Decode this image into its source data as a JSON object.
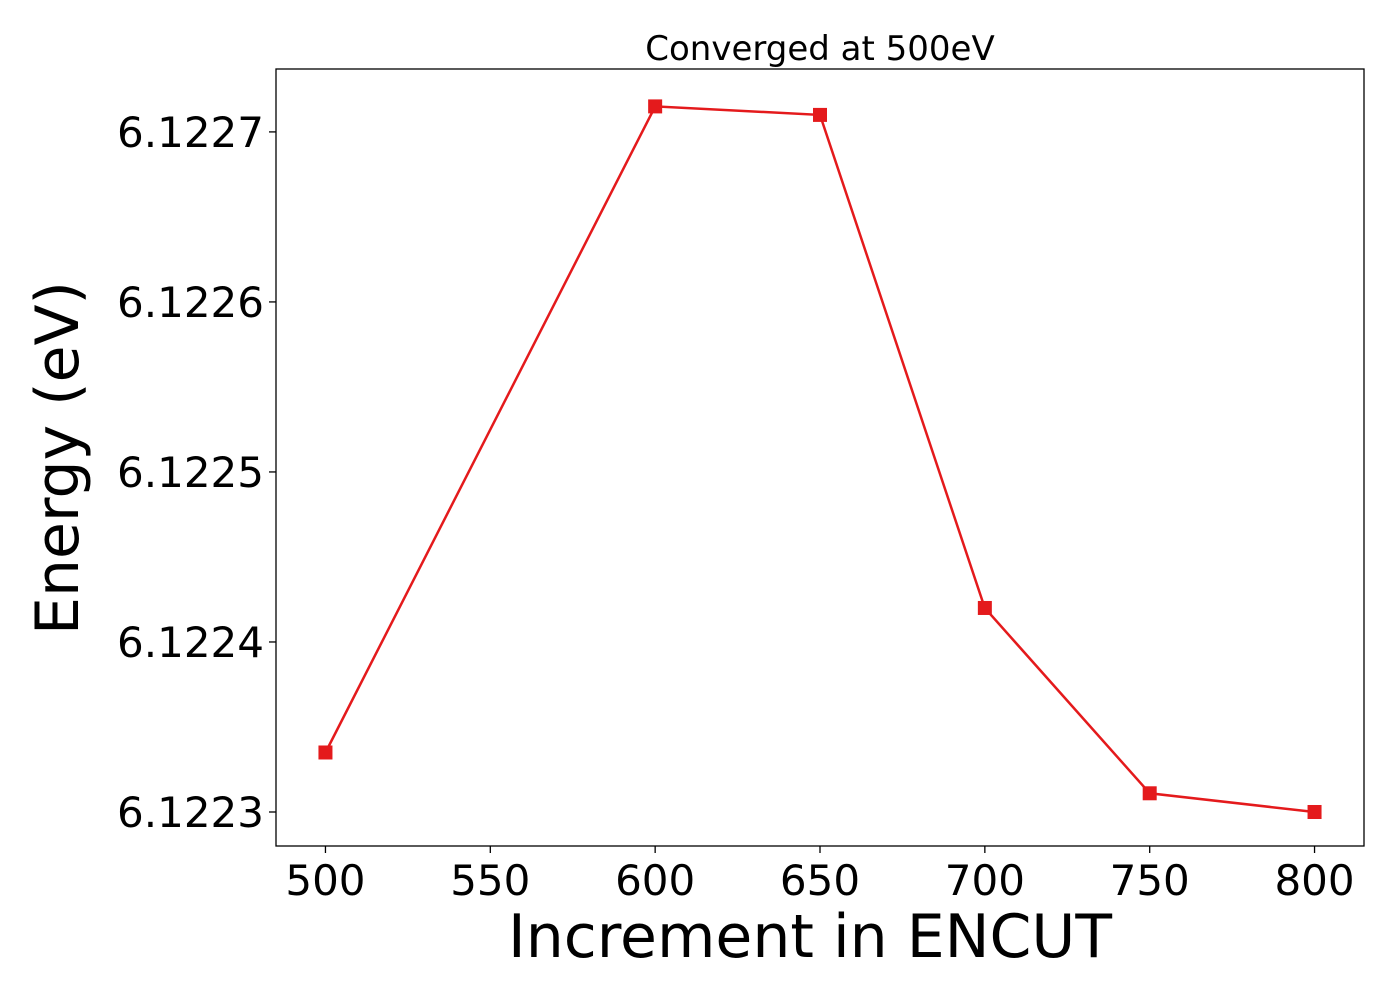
{
  "chart_data": {
    "type": "line",
    "title": "Converged at 500eV",
    "xlabel": "Increment in ENCUT",
    "ylabel": "Energy (eV)",
    "x": [
      500,
      600,
      650,
      700,
      750,
      800
    ],
    "series": [
      {
        "values": [
          6.122335,
          6.122715,
          6.12271,
          6.12242,
          6.122311,
          6.1223
        ],
        "color": "#e41a1c",
        "marker": "square"
      }
    ],
    "xticks": [
      "500",
      "550",
      "600",
      "650",
      "700",
      "750",
      "800"
    ],
    "yticks": [
      "6.1223",
      "6.1224",
      "6.1225",
      "6.1226",
      "6.1227"
    ],
    "xlim": [
      485,
      815
    ],
    "ylim": [
      6.12228,
      6.122737
    ],
    "grid": false,
    "legend": "none"
  }
}
